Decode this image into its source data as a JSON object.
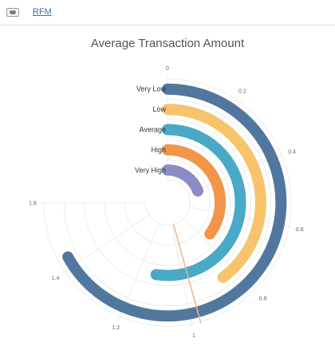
{
  "toolbar": {
    "icon": "eye-icon",
    "link_label": "RFM"
  },
  "chart_data": {
    "type": "radial-bar",
    "title": "Average Transaction Amount",
    "axis_range": [
      0,
      1.6
    ],
    "ticks": [
      "0",
      "0.2",
      "0.4",
      "0.6",
      "0.8",
      "1",
      "1.2",
      "1.4",
      "1.6"
    ],
    "categories": [
      "Very Low",
      "Low",
      "Average",
      "High",
      "Very High"
    ],
    "values": [
      1.43,
      0.85,
      1.12,
      0.75,
      0.41
    ],
    "colors": [
      "#52779f",
      "#f7c36b",
      "#49a9c6",
      "#f19649",
      "#8b8cc6"
    ],
    "marker_value": 0.975,
    "marker_color": "#f0b489"
  }
}
